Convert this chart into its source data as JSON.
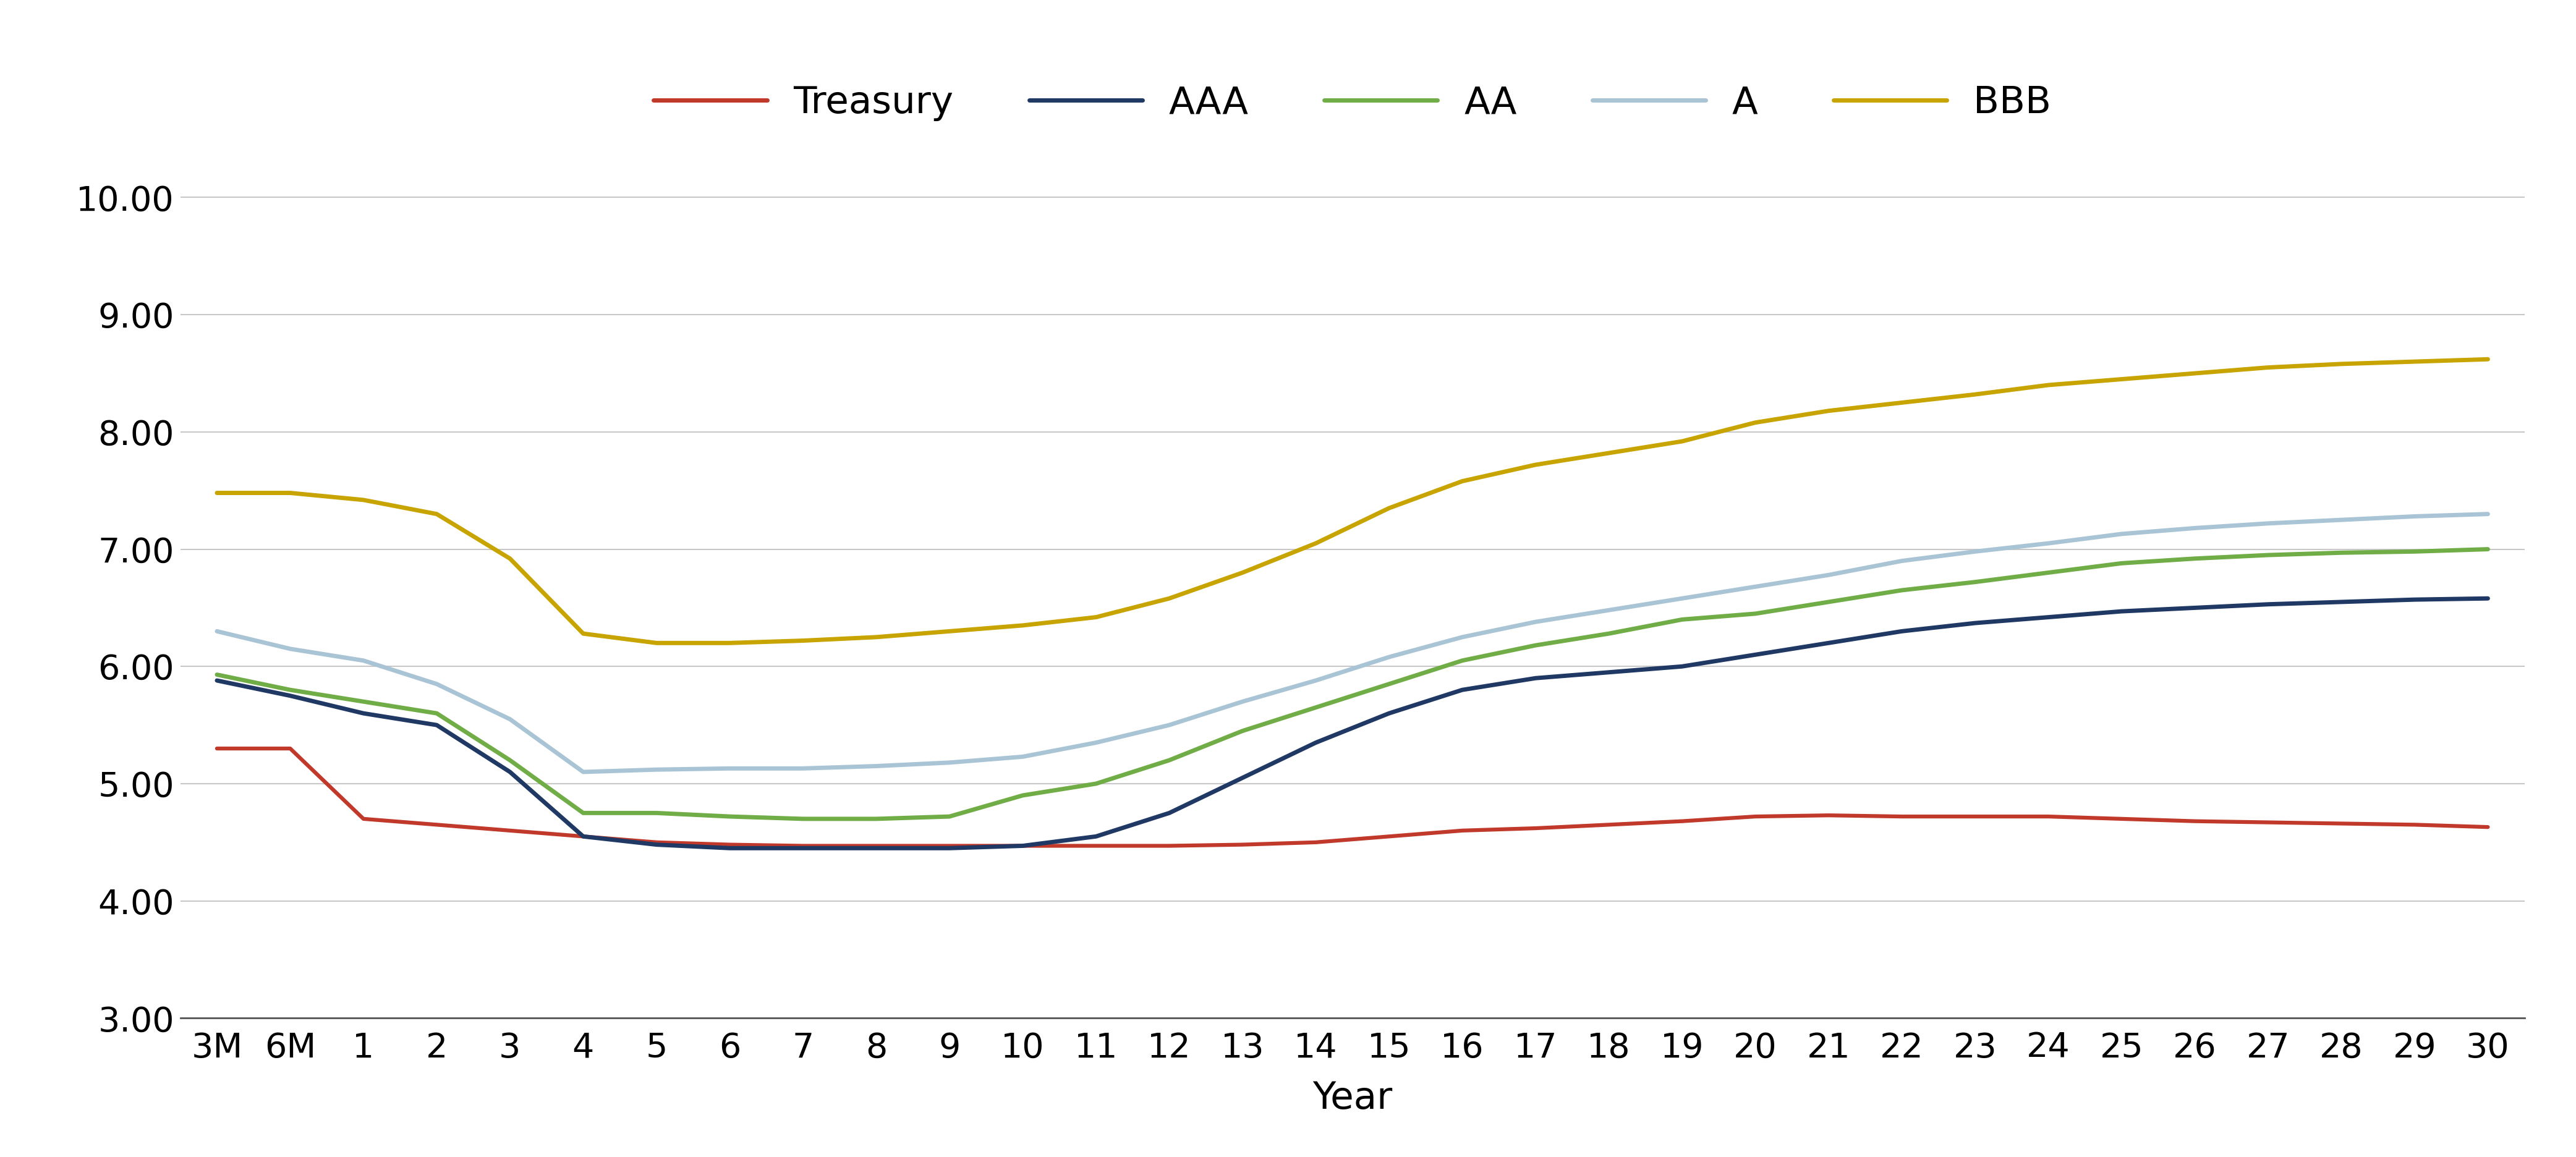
{
  "x_labels": [
    "3M",
    "6M",
    "1",
    "2",
    "3",
    "4",
    "5",
    "6",
    "7",
    "8",
    "9",
    "10",
    "11",
    "12",
    "13",
    "14",
    "15",
    "16",
    "17",
    "18",
    "19",
    "20",
    "21",
    "22",
    "23",
    "24",
    "25",
    "26",
    "27",
    "28",
    "29",
    "30"
  ],
  "series": {
    "Treasury": {
      "color": "#C0392B",
      "linewidth": 4.5,
      "values": [
        5.3,
        5.3,
        4.7,
        4.65,
        4.6,
        4.55,
        4.5,
        4.48,
        4.47,
        4.47,
        4.47,
        4.47,
        4.47,
        4.47,
        4.48,
        4.5,
        4.55,
        4.6,
        4.62,
        4.65,
        4.68,
        4.72,
        4.73,
        4.72,
        4.72,
        4.72,
        4.7,
        4.68,
        4.67,
        4.66,
        4.65,
        4.63
      ]
    },
    "AAA": {
      "color": "#1F3864",
      "linewidth": 5.0,
      "values": [
        5.88,
        5.75,
        5.6,
        5.5,
        5.1,
        4.55,
        4.48,
        4.45,
        4.45,
        4.45,
        4.45,
        4.47,
        4.55,
        4.75,
        5.05,
        5.35,
        5.6,
        5.8,
        5.9,
        5.95,
        6.0,
        6.1,
        6.2,
        6.3,
        6.37,
        6.42,
        6.47,
        6.5,
        6.53,
        6.55,
        6.57,
        6.58
      ]
    },
    "AA": {
      "color": "#70AD47",
      "linewidth": 5.0,
      "values": [
        5.93,
        5.8,
        5.7,
        5.6,
        5.2,
        4.75,
        4.75,
        4.72,
        4.7,
        4.7,
        4.72,
        4.9,
        5.0,
        5.2,
        5.45,
        5.65,
        5.85,
        6.05,
        6.18,
        6.28,
        6.4,
        6.45,
        6.55,
        6.65,
        6.72,
        6.8,
        6.88,
        6.92,
        6.95,
        6.97,
        6.98,
        7.0
      ]
    },
    "A": {
      "color": "#A9C4D5",
      "linewidth": 5.0,
      "values": [
        6.3,
        6.15,
        6.05,
        5.85,
        5.55,
        5.1,
        5.12,
        5.13,
        5.13,
        5.15,
        5.18,
        5.23,
        5.35,
        5.5,
        5.7,
        5.88,
        6.08,
        6.25,
        6.38,
        6.48,
        6.58,
        6.68,
        6.78,
        6.9,
        6.98,
        7.05,
        7.13,
        7.18,
        7.22,
        7.25,
        7.28,
        7.3
      ]
    },
    "BBB": {
      "color": "#C8A400",
      "linewidth": 5.0,
      "values": [
        7.48,
        7.48,
        7.42,
        7.3,
        6.92,
        6.28,
        6.2,
        6.2,
        6.22,
        6.25,
        6.3,
        6.35,
        6.42,
        6.58,
        6.8,
        7.05,
        7.35,
        7.58,
        7.72,
        7.82,
        7.92,
        8.08,
        8.18,
        8.25,
        8.32,
        8.4,
        8.45,
        8.5,
        8.55,
        8.58,
        8.6,
        8.62
      ]
    }
  },
  "ylim": [
    3.0,
    10.5
  ],
  "yticks": [
    3.0,
    4.0,
    5.0,
    6.0,
    7.0,
    8.0,
    9.0,
    10.0
  ],
  "ylabel": "",
  "xlabel": "Year",
  "background_color": "#FFFFFF",
  "grid_color": "#C8C8C8",
  "title": "",
  "legend_order": [
    "Treasury",
    "AAA",
    "AA",
    "A",
    "BBB"
  ]
}
